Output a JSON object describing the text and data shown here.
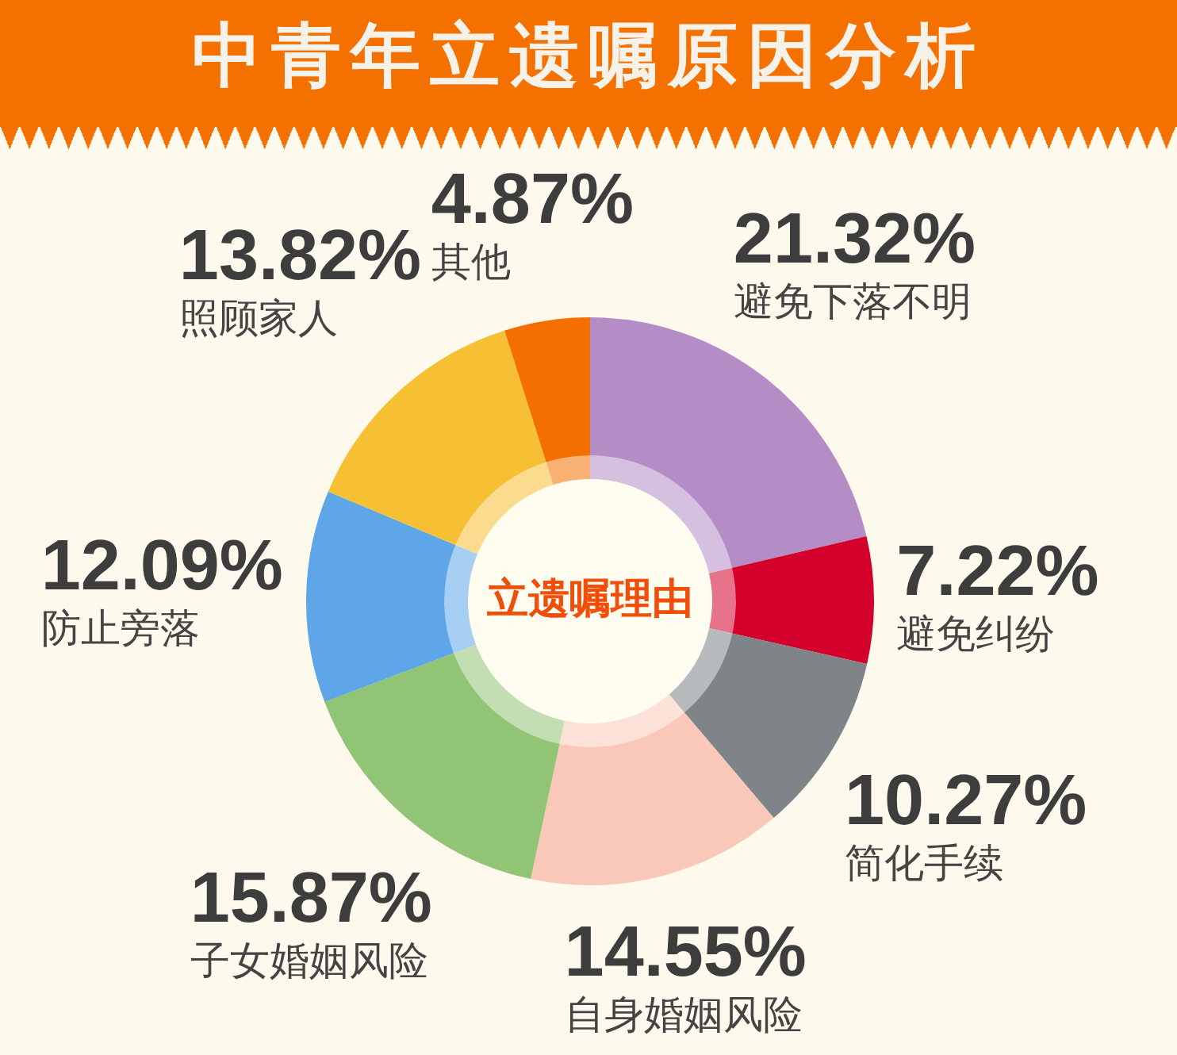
{
  "chart_data": {
    "type": "donut",
    "title": "中青年立遗嘱原因分析",
    "categories": [
      "避免下落不明",
      "避免纠纷",
      "简化手续",
      "自身婚姻风险",
      "子女婚姻风险",
      "防止旁落",
      "照顾家人",
      "其他"
    ],
    "values": [
      21.32,
      7.22,
      10.27,
      14.55,
      15.87,
      12.09,
      13.82,
      4.87
    ],
    "colors": [
      "#b48dc6",
      "#d2002a",
      "#7e8488",
      "#f9c8b8",
      "#91c474",
      "#5fa6e9",
      "#f7c034",
      "#f46f00"
    ],
    "value_labels": [
      "21.32%",
      "7.22%",
      "10.27%",
      "14.55%",
      "15.87%",
      "12.09%",
      "13.82%",
      "4.87%"
    ],
    "annotations": [
      "立遗嘱理由"
    ]
  }
}
